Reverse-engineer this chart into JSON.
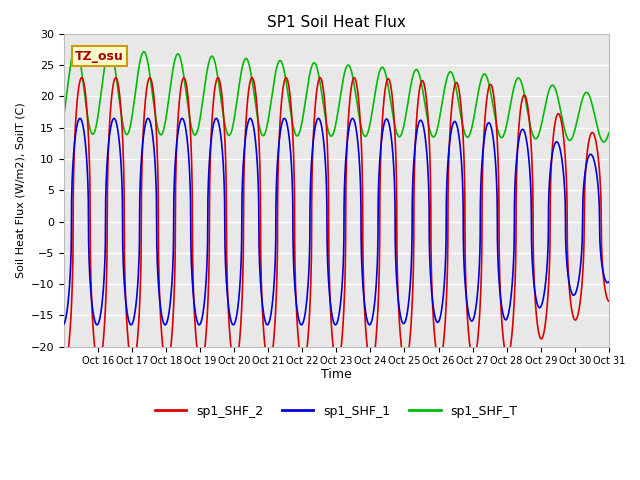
{
  "title": "SP1 Soil Heat Flux",
  "ylabel": "Soil Heat Flux (W/m2), SoilT (C)",
  "xlabel": "Time",
  "ylim": [
    -20,
    30
  ],
  "xlim": [
    0,
    16
  ],
  "bg_color": "#e8e8e8",
  "grid_color": "white",
  "tz_label": "TZ_osu",
  "x_tick_labels": [
    "Oct 16",
    "Oct 17",
    "Oct 18",
    "Oct 19",
    "Oct 20",
    "Oct 21",
    "Oct 22",
    "Oct 23",
    "Oct 24",
    "Oct 25",
    "Oct 26",
    "Oct 27",
    "Oct 28",
    "Oct 29",
    "Oct 30",
    "Oct 31"
  ],
  "line_colors": {
    "shf2": "#dd0000",
    "shf1": "#0000dd",
    "shft": "#00bb00"
  },
  "legend_labels": [
    "sp1_SHF_2",
    "sp1_SHF_1",
    "sp1_SHF_T"
  ]
}
